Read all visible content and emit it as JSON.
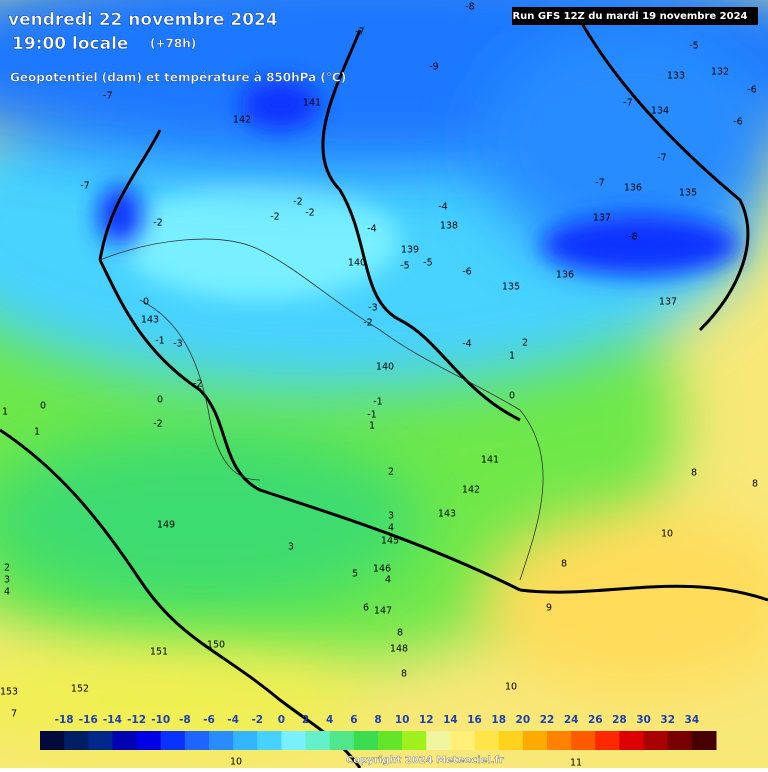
{
  "header": {
    "title": "vendredi 22 novembre 2024",
    "time": "19:00 locale",
    "lead": "(+78h)",
    "subtitle": "Geopotentiel (dam) et température à 850hPa (°C)",
    "run": "Run GFS 12Z du mardi 19 novembre 2024"
  },
  "legend": {
    "labels": [
      -18,
      -16,
      -14,
      -12,
      -10,
      -8,
      -6,
      -4,
      -2,
      0,
      2,
      4,
      6,
      8,
      10,
      12,
      14,
      16,
      18,
      20,
      22,
      24,
      26,
      28,
      30,
      32,
      34
    ],
    "colors": [
      "#000a3c",
      "#001e64",
      "#00288c",
      "#0000b4",
      "#0000e6",
      "#0a32ff",
      "#1e64ff",
      "#288cff",
      "#32b4ff",
      "#46d2ff",
      "#78f0ff",
      "#64f0c8",
      "#50e68c",
      "#3cdc50",
      "#64e628",
      "#a0f01e",
      "#f0f5a0",
      "#fff078",
      "#ffe646",
      "#ffd21e",
      "#ffaa00",
      "#ff8200",
      "#ff5a00",
      "#ff2800",
      "#dc0000",
      "#aa0000",
      "#780000",
      "#460000"
    ]
  },
  "contour_labels": [
    133,
    132,
    134,
    136,
    135,
    137,
    138,
    139,
    140,
    141,
    142,
    143,
    140,
    141,
    142,
    143,
    145,
    146,
    147,
    148,
    149,
    150,
    151,
    152,
    153,
    136,
    137,
    135
  ],
  "temperature_labels": [
    -7,
    -2,
    -2,
    -2,
    -2,
    -4,
    -5,
    -5,
    -6,
    -4,
    -3,
    -2,
    -4,
    2,
    1,
    0,
    -1,
    -3,
    -2,
    0,
    -2,
    0,
    1,
    1,
    -1,
    -1,
    1,
    0,
    2,
    3,
    4,
    3,
    5,
    4,
    6,
    8,
    8,
    10,
    10,
    9,
    8,
    8,
    8,
    2,
    3,
    4,
    7,
    10,
    11,
    -7,
    -9,
    -5,
    -6,
    -7,
    -7,
    -7,
    -8,
    -6,
    -7,
    -8
  ],
  "footer": {
    "copyright": "Copyright 2024 Meteociel.fr"
  }
}
